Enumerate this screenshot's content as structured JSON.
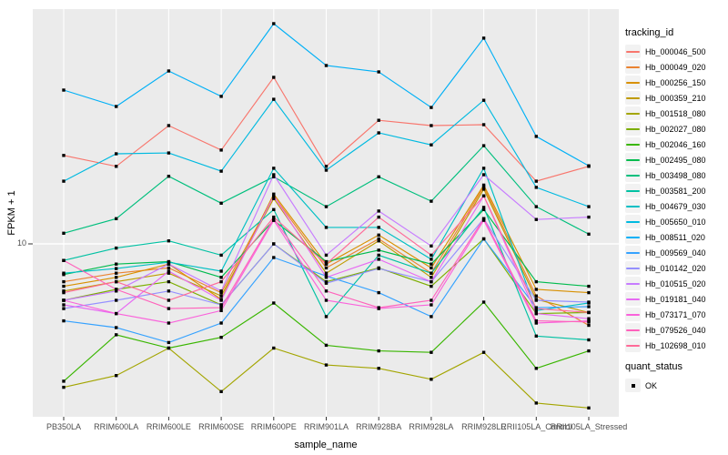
{
  "figure": {
    "y_axis": {
      "title": "FPKM + 1",
      "tick_label": "10"
    },
    "x_axis": {
      "title": "sample_name"
    },
    "legend": {
      "tracking_title": "tracking_id",
      "quant_title": "quant_status",
      "quant_ok_label": "OK"
    },
    "colors": {
      "panel_bg": "#EBEBEB",
      "gridline": "#FFFFFF",
      "tick": "#333333",
      "axis_text": "#4D4D4D",
      "point": "#000000"
    }
  },
  "chart_data": {
    "type": "line",
    "title": "",
    "xlabel": "sample_name",
    "ylabel": "FPKM + 1",
    "y_scale": "log10",
    "y_ticks": [
      10
    ],
    "ylim": [
      1.85,
      100
    ],
    "grid": true,
    "legend_position": "right",
    "point_shape": "filled-black-square",
    "categories": [
      "PB350LA",
      "RRIM600LA",
      "RRIM600LE",
      "RRIM600SE",
      "RRIM600PE",
      "RRIM901LA",
      "RRIM928BA",
      "RRIM928LA",
      "RRIM928LE",
      "RRII105LA_Control",
      "RRII105LA_Stressed"
    ],
    "series": [
      {
        "name": "Hb_000046_500",
        "color": "#F8766D",
        "values": [
          23.8,
          21.4,
          31.9,
          25.1,
          51.2,
          21.4,
          33.6,
          31.9,
          32.2,
          18.5,
          21.4
        ]
      },
      {
        "name": "Hb_000049_020",
        "color": "#EA8331",
        "values": [
          6.9,
          7.5,
          7.9,
          6.2,
          16.0,
          7.9,
          10.5,
          7.5,
          17.5,
          6.0,
          4.5
        ]
      },
      {
        "name": "Hb_000256_150",
        "color": "#D89000",
        "values": [
          6.6,
          7.2,
          8.2,
          5.8,
          16.3,
          8.2,
          10.9,
          7.9,
          17.8,
          6.4,
          6.2
        ]
      },
      {
        "name": "Hb_000359_210",
        "color": "#C09B00",
        "values": [
          6.3,
          6.9,
          7.5,
          6.0,
          15.6,
          7.5,
          10.3,
          7.2,
          17.1,
          5.8,
          5.1
        ]
      },
      {
        "name": "Hb_001518_080",
        "color": "#A3A500",
        "values": [
          2.45,
          2.75,
          3.6,
          2.35,
          3.6,
          3.05,
          2.95,
          2.65,
          3.45,
          2.1,
          2.0
        ]
      },
      {
        "name": "Hb_002027_080",
        "color": "#7CAE00",
        "values": [
          5.75,
          6.4,
          6.9,
          5.5,
          10.0,
          6.9,
          7.9,
          6.6,
          10.5,
          5.05,
          5.1
        ]
      },
      {
        "name": "Hb_002046_160",
        "color": "#39B600",
        "values": [
          2.6,
          4.1,
          3.6,
          4.0,
          5.6,
          3.7,
          3.5,
          3.45,
          5.65,
          2.95,
          3.5
        ]
      },
      {
        "name": "Hb_002495_080",
        "color": "#00BB4E",
        "values": [
          7.4,
          8.2,
          8.4,
          7.2,
          12.6,
          8.4,
          9.4,
          8.2,
          14.0,
          6.9,
          6.6
        ]
      },
      {
        "name": "Hb_003498_080",
        "color": "#00BF7D",
        "values": [
          11.1,
          12.8,
          19.4,
          14.9,
          19.3,
          14.4,
          19.3,
          15.2,
          26.2,
          14.4,
          11.0
        ]
      },
      {
        "name": "Hb_003581_200",
        "color": "#00C1A3",
        "values": [
          8.5,
          9.6,
          10.3,
          8.95,
          14.0,
          4.9,
          8.95,
          7.5,
          14.3,
          4.05,
          3.9
        ]
      },
      {
        "name": "Hb_004679_030",
        "color": "#00BFC4",
        "values": [
          7.5,
          7.85,
          8.35,
          7.65,
          21.0,
          11.75,
          11.75,
          8.6,
          21.0,
          5.2,
          5.6
        ]
      },
      {
        "name": "Hb_005650_010",
        "color": "#00BAE0",
        "values": [
          18.5,
          24.2,
          24.4,
          20.4,
          41.3,
          20.6,
          29.7,
          26.4,
          40.9,
          17.4,
          14.4
        ]
      },
      {
        "name": "Hb_008511_020",
        "color": "#00B0F6",
        "values": [
          45.2,
          38.5,
          54.5,
          42.5,
          86.7,
          57.5,
          54.0,
          38.1,
          75.2,
          28.7,
          21.5
        ]
      },
      {
        "name": "Hb_009569_040",
        "color": "#35A2FF",
        "values": [
          4.7,
          4.4,
          3.8,
          4.6,
          8.75,
          7.3,
          6.2,
          4.9,
          10.5,
          5.35,
          5.4
        ]
      },
      {
        "name": "Hb_010142_020",
        "color": "#9590FF",
        "values": [
          5.3,
          5.75,
          6.3,
          5.5,
          10.0,
          6.8,
          7.85,
          6.9,
          12.8,
          5.75,
          5.65
        ]
      },
      {
        "name": "Hb_010515_020",
        "color": "#C77CFF",
        "values": [
          5.75,
          6.3,
          8.2,
          6.3,
          19.7,
          8.95,
          13.8,
          9.8,
          19.7,
          12.7,
          13.0
        ]
      },
      {
        "name": "Hb_019181_040",
        "color": "#E76BF3",
        "values": [
          5.5,
          5.05,
          7.65,
          5.75,
          16.0,
          7.2,
          8.6,
          6.9,
          16.0,
          5.05,
          4.8
        ]
      },
      {
        "name": "Hb_073171_070",
        "color": "#FA62DB",
        "values": [
          5.75,
          5.05,
          4.6,
          5.2,
          12.6,
          5.75,
          5.3,
          5.5,
          12.6,
          4.6,
          4.7
        ]
      },
      {
        "name": "Hb_079526_040",
        "color": "#FF62BC",
        "values": [
          8.5,
          6.4,
          5.3,
          5.35,
          12.8,
          6.3,
          5.35,
          5.75,
          12.8,
          4.7,
          4.65
        ]
      },
      {
        "name": "Hb_102698_010",
        "color": "#FF6A98",
        "values": [
          6.2,
          6.9,
          5.75,
          6.9,
          13.0,
          8.2,
          13.0,
          8.95,
          16.0,
          5.3,
          5.1
        ]
      }
    ]
  }
}
